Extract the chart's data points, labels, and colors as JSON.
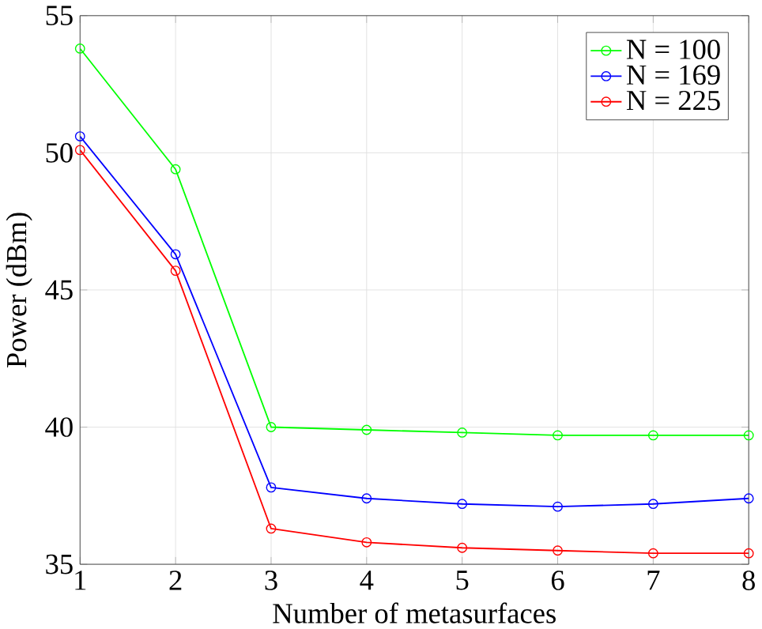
{
  "chart_data": {
    "type": "line",
    "xlabel": "Number of metasurfaces",
    "ylabel": "Power (dBm)",
    "x": [
      1,
      2,
      3,
      4,
      5,
      6,
      7,
      8
    ],
    "series": [
      {
        "name": "N = 100",
        "color": "#00ff00",
        "values": [
          53.8,
          49.4,
          40.0,
          39.9,
          39.8,
          39.7,
          39.7,
          39.7
        ]
      },
      {
        "name": "N = 169",
        "color": "#0000ff",
        "values": [
          50.6,
          46.3,
          37.8,
          37.4,
          37.2,
          37.1,
          37.2,
          37.4
        ]
      },
      {
        "name": "N = 225",
        "color": "#ff0000",
        "values": [
          50.1,
          45.7,
          36.3,
          35.8,
          35.6,
          35.5,
          35.4,
          35.4
        ]
      }
    ],
    "xlim": [
      1,
      8
    ],
    "ylim": [
      35,
      55
    ],
    "xticks": [
      1,
      2,
      3,
      4,
      5,
      6,
      7,
      8
    ],
    "yticks": [
      35,
      40,
      45,
      50,
      55
    ],
    "grid": true,
    "legend": "top right",
    "marker": "circle",
    "line_style": "solid"
  }
}
